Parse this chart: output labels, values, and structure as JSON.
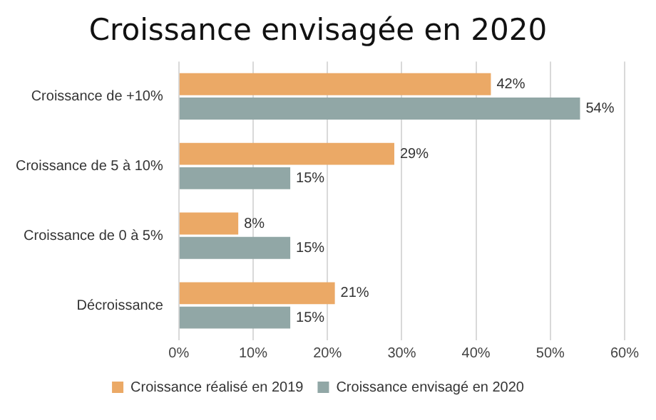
{
  "chart_data": {
    "type": "bar",
    "orientation": "horizontal",
    "title": "Croissance envisagée en 2020",
    "categories": [
      "Croissance de +10%",
      "Croissance de 5 à 10%",
      "Croissance de 0 à 5%",
      "Décroissance"
    ],
    "series": [
      {
        "name": "Croissance réalisé en 2019",
        "color": "#eba966",
        "values": [
          42,
          29,
          8,
          21
        ],
        "value_labels": [
          "42%",
          "29%",
          "8%",
          "21%"
        ]
      },
      {
        "name": "Croissance envisagé en 2020",
        "color": "#91a7a6",
        "values": [
          54,
          15,
          15,
          15
        ],
        "value_labels": [
          "54%",
          "15%",
          "15%",
          "15%"
        ]
      }
    ],
    "xlim": [
      0,
      60
    ],
    "xticks": [
      {
        "value": 0,
        "label": "0%"
      },
      {
        "value": 10,
        "label": "10%"
      },
      {
        "value": 20,
        "label": "20%"
      },
      {
        "value": 30,
        "label": "30%"
      },
      {
        "value": 40,
        "label": "40%"
      },
      {
        "value": 50,
        "label": "50%"
      },
      {
        "value": 60,
        "label": "60%"
      }
    ],
    "grid": "x",
    "legend": "bottom"
  }
}
